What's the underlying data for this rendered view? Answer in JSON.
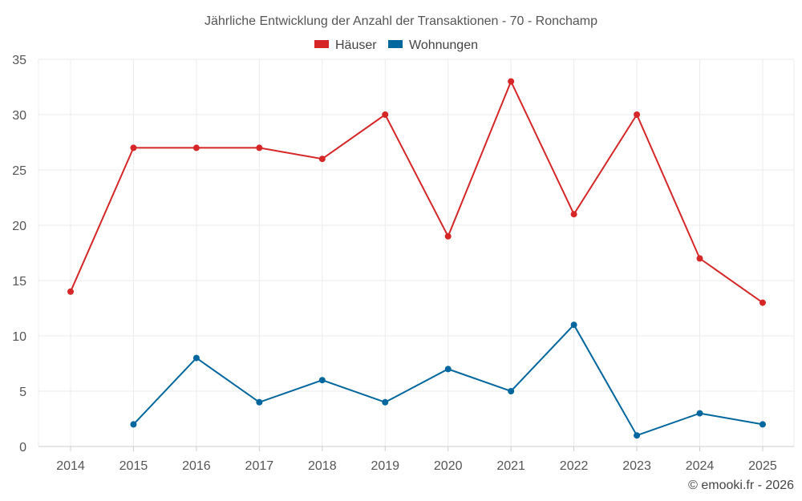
{
  "chart_data": {
    "type": "line",
    "title": "Jährliche Entwicklung der Anzahl der Transaktionen - 70 - Ronchamp",
    "categories": [
      "2014",
      "2015",
      "2016",
      "2017",
      "2018",
      "2019",
      "2020",
      "2021",
      "2022",
      "2023",
      "2024",
      "2025"
    ],
    "series": [
      {
        "name": "Häuser",
        "color": "#d62728",
        "values": [
          14,
          27,
          27,
          27,
          26,
          30,
          19,
          33,
          21,
          30,
          17,
          13
        ]
      },
      {
        "name": "Wohnungen",
        "color": "#00679e",
        "values": [
          null,
          2,
          8,
          4,
          6,
          4,
          7,
          5,
          11,
          1,
          3,
          2
        ]
      }
    ],
    "ylim": [
      0,
      35
    ],
    "yticks": [
      0,
      5,
      10,
      15,
      20,
      25,
      30,
      35
    ],
    "grid": true,
    "legend_position": "top-center"
  },
  "credit": "© emooki.fr - 2026"
}
